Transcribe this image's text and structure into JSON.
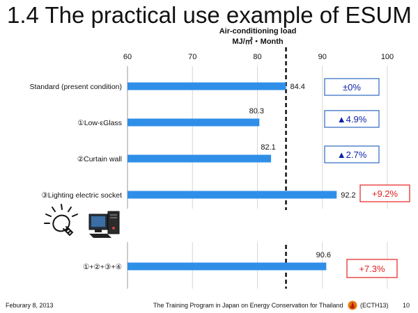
{
  "slide": {
    "title": "1.4 The practical use example of ESUM"
  },
  "chart_data": {
    "type": "bar",
    "orientation": "horizontal",
    "axis_title_line1": "Air-conditioning load",
    "axis_title_line2": "MJ/㎡・Month",
    "xlim": [
      60,
      100
    ],
    "x_ticks": [
      "60",
      "70",
      "80",
      "90",
      "100"
    ],
    "grid": true,
    "reference_line": 84.4,
    "categories": [
      "Standard (present condition)",
      "①Low-εGlass",
      "②Curtain wall",
      "③Lighting electric socket",
      "①+②+③+④"
    ],
    "values": [
      84.4,
      80.3,
      82.1,
      92.2,
      90.6
    ],
    "value_labels": [
      "84.4",
      "80.3",
      "82.1",
      "92.2",
      "90.6"
    ],
    "change_labels": [
      "±0%",
      "▲4.9%",
      "▲2.7%",
      "+9.2%",
      "+7.3%"
    ],
    "change_kind": [
      "neutral",
      "decrease",
      "decrease",
      "increase",
      "increase"
    ],
    "colors": {
      "bar": "#2f8fe8",
      "decrease_box_border": "#3b73c4",
      "decrease_text": "#0a1fa8",
      "increase_box_border": "#e83030",
      "increase_text": "#e02020",
      "grid": "#d6d6d6",
      "reference_line": "#111111"
    }
  },
  "icons": {
    "lightbulb": "lightbulb-icon",
    "computer": "computer-icon",
    "footer_logo": "energy-flame-icon"
  },
  "footer": {
    "date": "Feburary 8, 2013",
    "program": "The Training Program in Japan on Energy Conservation for Thailand",
    "code": "(ECTH13)",
    "page": "10"
  }
}
